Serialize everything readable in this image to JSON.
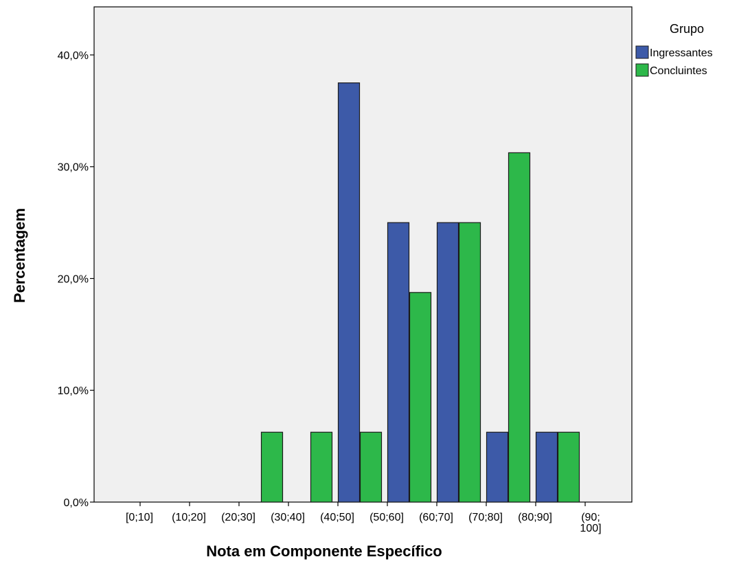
{
  "chart_data": {
    "type": "bar",
    "title": "",
    "xlabel": "Nota em Componente Específico",
    "ylabel": "Percentagem",
    "categories": [
      [
        "[0;10]"
      ],
      [
        "(10;20]"
      ],
      [
        "(20;30]"
      ],
      [
        "(30;40]"
      ],
      [
        "(40;50]"
      ],
      [
        "(50;60]"
      ],
      [
        "(60;70]"
      ],
      [
        "(70;80]"
      ],
      [
        "(80;90]"
      ],
      [
        "(90;",
        "100]"
      ]
    ],
    "series": [
      {
        "name": "Ingressantes",
        "color": "#3d5aa8",
        "values": [
          0,
          0,
          0,
          0,
          37.5,
          25.0,
          25.0,
          6.25,
          6.25,
          0
        ]
      },
      {
        "name": "Concluintes",
        "color": "#2db84a",
        "values": [
          0,
          0,
          6.25,
          6.25,
          6.25,
          18.75,
          25.0,
          31.25,
          6.25,
          0
        ]
      }
    ],
    "ylim": [
      0,
      44.3
    ],
    "yticks": [
      0,
      10,
      20,
      30,
      40
    ],
    "ytick_labels": [
      "0,0%",
      "10,0%",
      "20,0%",
      "30,0%",
      "40,0%"
    ],
    "legend": {
      "title": "Grupo",
      "placement": "right"
    },
    "plot_background": "#f0f0f0",
    "grid": false
  }
}
